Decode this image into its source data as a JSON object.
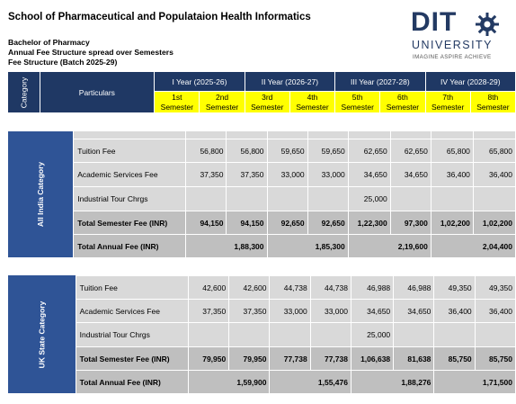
{
  "header": {
    "title": "School of Pharmaceutical and Populataion Health Informatics",
    "line1": "Bachelor of Pharmacy",
    "line2": "Annual Fee Structure spread over Semesters",
    "line3": "Fee Structure (Batch 2025-29)"
  },
  "logo": {
    "dit": "DIT",
    "university": "UNIVERSITY",
    "tagline": "IMAGINE  ASPIRE  ACHIEVE"
  },
  "table": {
    "category_label": "Category",
    "particulars_label": "Particulars",
    "years": [
      "I Year (2025-26)",
      "II Year (2026-27)",
      "III Year (2027-28)",
      "IV Year (2028-29)"
    ],
    "semesters": [
      {
        "n": "1st",
        "s": "Semester"
      },
      {
        "n": "2nd",
        "s": "Semester"
      },
      {
        "n": "3rd",
        "s": "Semester"
      },
      {
        "n": "4th",
        "s": "Semester"
      },
      {
        "n": "5th",
        "s": "Semester"
      },
      {
        "n": "6th",
        "s": "Semester"
      },
      {
        "n": "7th",
        "s": "Semester"
      },
      {
        "n": "8th",
        "s": "Semester"
      }
    ]
  },
  "sections": [
    {
      "category": "All India Category",
      "rows": [
        {
          "label": "Tuition Fee",
          "values": [
            "56,800",
            "56,800",
            "59,650",
            "59,650",
            "62,650",
            "62,650",
            "65,800",
            "65,800"
          ]
        },
        {
          "label": "Academic Services Fee",
          "values": [
            "37,350",
            "37,350",
            "33,000",
            "33,000",
            "34,650",
            "34,650",
            "36,400",
            "36,400"
          ]
        },
        {
          "label": "Industrial Tour Chrgs",
          "values": [
            "",
            "",
            "",
            "",
            "25,000",
            "",
            "",
            ""
          ]
        },
        {
          "label": "Total Semester Fee (INR)",
          "values": [
            "94,150",
            "94,150",
            "92,650",
            "92,650",
            "1,22,300",
            "97,300",
            "1,02,200",
            "1,02,200"
          ]
        }
      ],
      "annual": {
        "label": "Total Annual Fee (INR)",
        "values": [
          "1,88,300",
          "1,85,300",
          "2,19,600",
          "2,04,400"
        ]
      }
    },
    {
      "category": "UK State Category",
      "rows": [
        {
          "label": "Tuition Fee",
          "values": [
            "42,600",
            "42,600",
            "44,738",
            "44,738",
            "46,988",
            "46,988",
            "49,350",
            "49,350"
          ]
        },
        {
          "label": "Academic Services Fee",
          "values": [
            "37,350",
            "37,350",
            "33,000",
            "33,000",
            "34,650",
            "34,650",
            "36,400",
            "36,400"
          ]
        },
        {
          "label": "Industrial Tour Chrgs",
          "values": [
            "",
            "",
            "",
            "",
            "25,000",
            "",
            "",
            ""
          ]
        },
        {
          "label": "Total Semester Fee (INR)",
          "values": [
            "79,950",
            "79,950",
            "77,738",
            "77,738",
            "1,06,638",
            "81,638",
            "85,750",
            "85,750"
          ]
        }
      ],
      "annual": {
        "label": "Total Annual Fee (INR)",
        "values": [
          "1,59,900",
          "1,55,476",
          "1,88,276",
          "1,71,500"
        ]
      }
    }
  ]
}
